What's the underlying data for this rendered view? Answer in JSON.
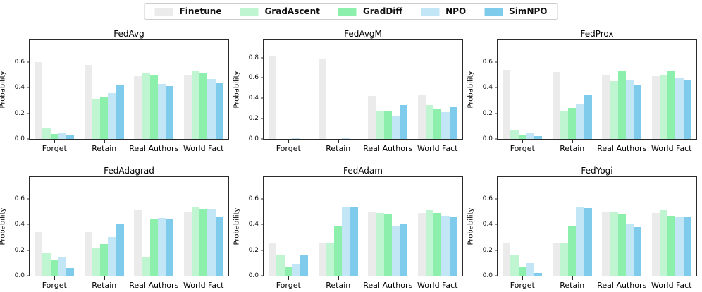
{
  "legend": {
    "entries": [
      {
        "label": "Finetune",
        "color": "#ebebeb"
      },
      {
        "label": "GradAscent",
        "color": "#bff5d1"
      },
      {
        "label": "GradDiff",
        "color": "#8defac"
      },
      {
        "label": "NPO",
        "color": "#c2e6f5"
      },
      {
        "label": "SimNPO",
        "color": "#7fcbec"
      }
    ]
  },
  "chart_data": [
    {
      "type": "bar",
      "title": "FedAvg",
      "ylabel": "Probability",
      "categories": [
        "Forget",
        "Retain",
        "Real Authors",
        "World Fact"
      ],
      "series": [
        {
          "name": "Finetune",
          "values": [
            0.6,
            0.58,
            0.49,
            0.5
          ]
        },
        {
          "name": "GradAscent",
          "values": [
            0.08,
            0.31,
            0.51,
            0.53
          ]
        },
        {
          "name": "GradDiff",
          "values": [
            0.04,
            0.33,
            0.5,
            0.51
          ]
        },
        {
          "name": "NPO",
          "values": [
            0.05,
            0.36,
            0.43,
            0.47
          ]
        },
        {
          "name": "SimNPO",
          "values": [
            0.03,
            0.42,
            0.41,
            0.44
          ]
        }
      ],
      "yticks": [
        0.0,
        0.2,
        0.4,
        0.6
      ],
      "ylim": [
        0,
        0.77
      ],
      "grid": false,
      "legend_position": "figure-top"
    },
    {
      "type": "bar",
      "title": "FedAvgM",
      "ylabel": "Probability",
      "categories": [
        "Forget",
        "Retain",
        "Real Authors",
        "World Fact"
      ],
      "series": [
        {
          "name": "Finetune",
          "values": [
            0.81,
            0.78,
            0.42,
            0.43
          ]
        },
        {
          "name": "GradAscent",
          "values": [
            0.0,
            0.0,
            0.27,
            0.33
          ]
        },
        {
          "name": "GradDiff",
          "values": [
            0.0,
            0.0,
            0.27,
            0.29
          ]
        },
        {
          "name": "NPO",
          "values": [
            0.01,
            0.01,
            0.22,
            0.26
          ]
        },
        {
          "name": "SimNPO",
          "values": [
            0.0,
            0.0,
            0.33,
            0.31
          ]
        }
      ],
      "yticks": [
        0.0,
        0.2,
        0.4,
        0.6,
        0.8
      ],
      "ylim": [
        0,
        0.97
      ],
      "grid": false,
      "legend_position": "figure-top"
    },
    {
      "type": "bar",
      "title": "FedProx",
      "ylabel": "Probability",
      "categories": [
        "Forget",
        "Retain",
        "Real Authors",
        "World Fact"
      ],
      "series": [
        {
          "name": "Finetune",
          "values": [
            0.54,
            0.52,
            0.5,
            0.49
          ]
        },
        {
          "name": "GradAscent",
          "values": [
            0.07,
            0.22,
            0.45,
            0.5
          ]
        },
        {
          "name": "GradDiff",
          "values": [
            0.03,
            0.24,
            0.53,
            0.53
          ]
        },
        {
          "name": "NPO",
          "values": [
            0.05,
            0.27,
            0.46,
            0.48
          ]
        },
        {
          "name": "SimNPO",
          "values": [
            0.02,
            0.34,
            0.42,
            0.46
          ]
        }
      ],
      "yticks": [
        0.0,
        0.2,
        0.4,
        0.6
      ],
      "ylim": [
        0,
        0.77
      ],
      "grid": false,
      "legend_position": "figure-top"
    },
    {
      "type": "bar",
      "title": "FedAdagrad",
      "ylabel": "Probability",
      "categories": [
        "Forget",
        "Retain",
        "Real Authors",
        "World Fact"
      ],
      "series": [
        {
          "name": "Finetune",
          "values": [
            0.34,
            0.34,
            0.51,
            0.5
          ]
        },
        {
          "name": "GradAscent",
          "values": [
            0.18,
            0.22,
            0.15,
            0.54
          ]
        },
        {
          "name": "GradDiff",
          "values": [
            0.12,
            0.25,
            0.44,
            0.52
          ]
        },
        {
          "name": "NPO",
          "values": [
            0.15,
            0.3,
            0.45,
            0.52
          ]
        },
        {
          "name": "SimNPO",
          "values": [
            0.06,
            0.4,
            0.44,
            0.46
          ]
        }
      ],
      "yticks": [
        0.0,
        0.2,
        0.4,
        0.6
      ],
      "ylim": [
        0,
        0.77
      ],
      "grid": false,
      "legend_position": "figure-top"
    },
    {
      "type": "bar",
      "title": "FedAdam",
      "ylabel": "Probability",
      "categories": [
        "Forget",
        "Retain",
        "Real Authors",
        "World Fact"
      ],
      "series": [
        {
          "name": "Finetune",
          "values": [
            0.26,
            0.26,
            0.5,
            0.49
          ]
        },
        {
          "name": "GradAscent",
          "values": [
            0.16,
            0.26,
            0.49,
            0.51
          ]
        },
        {
          "name": "GradDiff",
          "values": [
            0.07,
            0.39,
            0.48,
            0.49
          ]
        },
        {
          "name": "NPO",
          "values": [
            0.09,
            0.54,
            0.39,
            0.47
          ]
        },
        {
          "name": "SimNPO",
          "values": [
            0.16,
            0.54,
            0.4,
            0.46
          ]
        }
      ],
      "yticks": [
        0.0,
        0.2,
        0.4,
        0.6
      ],
      "ylim": [
        0,
        0.77
      ],
      "grid": false,
      "legend_position": "figure-top"
    },
    {
      "type": "bar",
      "title": "FedYogi",
      "ylabel": "Probability",
      "categories": [
        "Forget",
        "Retain",
        "Real Authors",
        "World Fact"
      ],
      "series": [
        {
          "name": "Finetune",
          "values": [
            0.26,
            0.26,
            0.5,
            0.49
          ]
        },
        {
          "name": "GradAscent",
          "values": [
            0.16,
            0.26,
            0.5,
            0.51
          ]
        },
        {
          "name": "GradDiff",
          "values": [
            0.07,
            0.39,
            0.48,
            0.47
          ]
        },
        {
          "name": "NPO",
          "values": [
            0.1,
            0.54,
            0.4,
            0.46
          ]
        },
        {
          "name": "SimNPO",
          "values": [
            0.02,
            0.53,
            0.38,
            0.46
          ]
        }
      ],
      "yticks": [
        0.0,
        0.2,
        0.4,
        0.6
      ],
      "ylim": [
        0,
        0.77
      ],
      "grid": false,
      "legend_position": "figure-top"
    }
  ]
}
